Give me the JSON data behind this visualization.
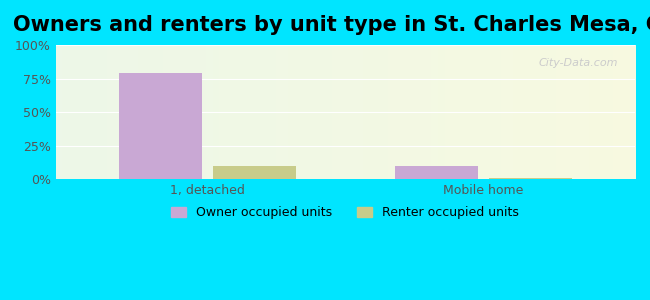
{
  "title": "Owners and renters by unit type in St. Charles Mesa, CO",
  "categories": [
    "1, detached",
    "Mobile home"
  ],
  "owner_values": [
    79,
    10
  ],
  "renter_values": [
    10,
    1
  ],
  "owner_color": "#c9a8d4",
  "renter_color": "#c8cc8a",
  "background_outer": "#00e5ff",
  "background_inner_top_left": "#e8f5e9",
  "background_inner_top_right": "#f5f5e0",
  "ylim": [
    0,
    100
  ],
  "yticks": [
    0,
    25,
    50,
    75,
    100
  ],
  "ytick_labels": [
    "0%",
    "25%",
    "50%",
    "75%",
    "100%"
  ],
  "bar_width": 0.3,
  "legend_owner": "Owner occupied units",
  "legend_renter": "Renter occupied units",
  "watermark": "City-Data.com",
  "title_fontsize": 15,
  "axis_label_fontsize": 9,
  "legend_fontsize": 9
}
